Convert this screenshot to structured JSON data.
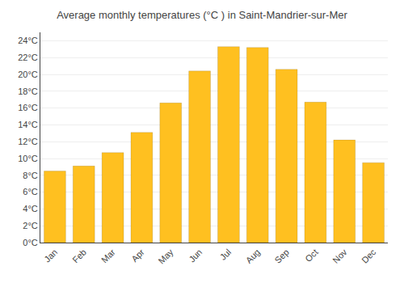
{
  "chart_data": {
    "type": "bar",
    "title": "Average monthly temperatures (°C ) in Saint-Mandrier-sur-Mer",
    "categories": [
      "Jan",
      "Feb",
      "Mar",
      "Apr",
      "May",
      "Jun",
      "Jul",
      "Aug",
      "Sep",
      "Oct",
      "Nov",
      "Dec"
    ],
    "values": [
      8.5,
      9.1,
      10.7,
      13.1,
      16.6,
      20.4,
      23.3,
      23.2,
      20.6,
      16.7,
      12.2,
      9.5
    ],
    "color": "#FFC020",
    "ylim": [
      0,
      25
    ],
    "yticks": [
      {
        "value": 0,
        "label": "0°C"
      },
      {
        "value": 2,
        "label": "2°C"
      },
      {
        "value": 4,
        "label": "4°C"
      },
      {
        "value": 6,
        "label": "6°C"
      },
      {
        "value": 8,
        "label": "8°C"
      },
      {
        "value": 10,
        "label": "10°C"
      },
      {
        "value": 12,
        "label": "12°C"
      },
      {
        "value": 14,
        "label": "14°C"
      },
      {
        "value": 16,
        "label": "16°C"
      },
      {
        "value": 18,
        "label": "18°C"
      },
      {
        "value": 20,
        "label": "20°C"
      },
      {
        "value": 22,
        "label": "22°C"
      },
      {
        "value": 24,
        "label": "24°C"
      }
    ],
    "grid": true
  }
}
